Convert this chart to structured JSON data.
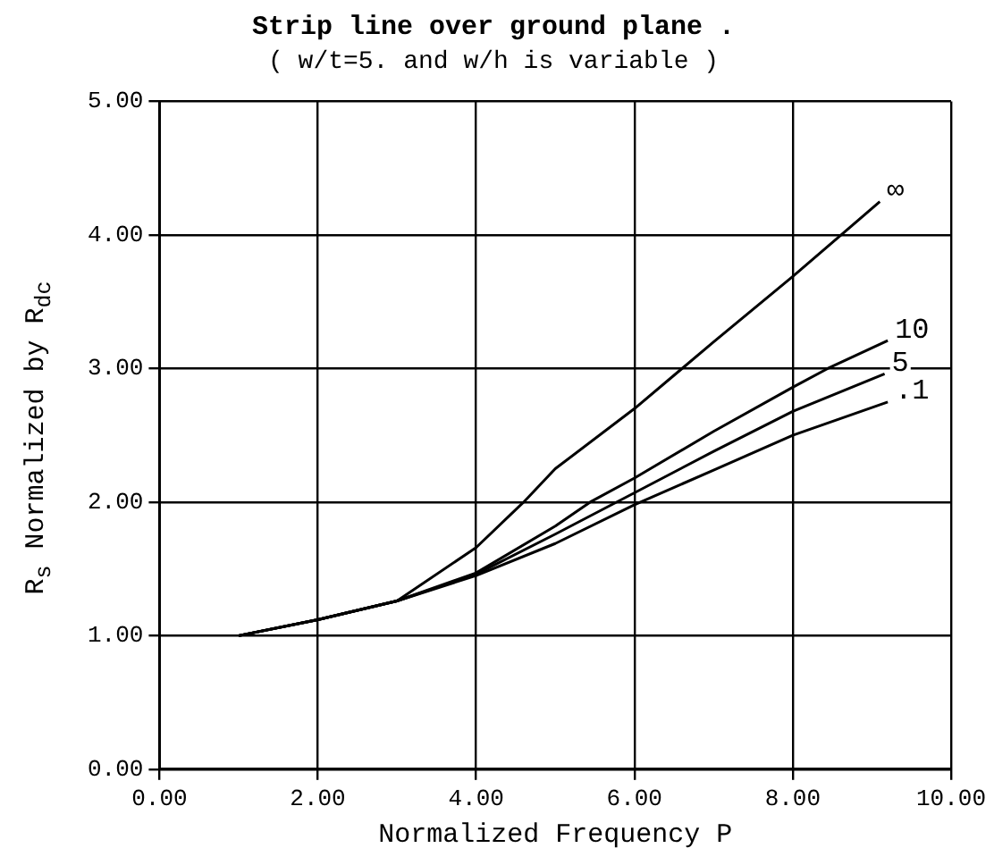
{
  "chart_data": {
    "type": "line",
    "title": "Strip line over ground plane .",
    "subtitle": "( w/t=5. and w/h is variable )",
    "xlabel": "Normalized Frequency P",
    "ylabel": "R$_{s}$ Normalized by R$_{dc}$",
    "series": [
      {
        "name": "∞",
        "color": "#000000",
        "x": [
          1,
          2,
          3,
          4,
          4.6,
          5,
          6,
          6.6,
          7,
          8,
          9.1
        ],
        "values": [
          1,
          1.12,
          1.26,
          1.66,
          2.0,
          2.25,
          2.7,
          3.0,
          3.2,
          3.69,
          4.25
        ]
      },
      {
        "name": "10",
        "color": "#000000",
        "x": [
          1,
          2,
          3,
          4,
          5,
          5.44,
          6,
          7,
          8,
          8.44,
          9.2
        ],
        "values": [
          1,
          1.12,
          1.26,
          1.47,
          1.82,
          2.0,
          2.18,
          2.53,
          2.86,
          3.0,
          3.21
        ]
      },
      {
        "name": "5",
        "color": "#000000",
        "x": [
          1,
          2,
          3,
          4,
          5,
          6,
          7,
          8,
          9.16
        ],
        "values": [
          1,
          1.12,
          1.26,
          1.46,
          1.76,
          2.07,
          2.38,
          2.68,
          2.96
        ]
      },
      {
        "name": ".1",
        "color": "#000000",
        "x": [
          1,
          2,
          3,
          4,
          5,
          6,
          7,
          8,
          9.2
        ],
        "values": [
          1,
          1.12,
          1.26,
          1.45,
          1.69,
          1.98,
          2.24,
          2.5,
          2.75
        ]
      }
    ],
    "xlim": [
      0,
      10
    ],
    "ylim": [
      0,
      5
    ],
    "xticks": [
      {
        "value": 0,
        "label": "0.00"
      },
      {
        "value": 2,
        "label": "2.00"
      },
      {
        "value": 4,
        "label": "4.00"
      },
      {
        "value": 6,
        "label": "6.00"
      },
      {
        "value": 8,
        "label": "8.00"
      },
      {
        "value": 10,
        "label": "10.00"
      }
    ],
    "yticks": [
      {
        "value": 0,
        "label": "0.00"
      },
      {
        "value": 1,
        "label": "1.00"
      },
      {
        "value": 2,
        "label": "2.00"
      },
      {
        "value": 3,
        "label": "3.00"
      },
      {
        "value": 4,
        "label": "4.00"
      },
      {
        "value": 5,
        "label": "5.00"
      }
    ],
    "grid": true,
    "legend": false,
    "marker": "none",
    "line_style": "solid"
  }
}
